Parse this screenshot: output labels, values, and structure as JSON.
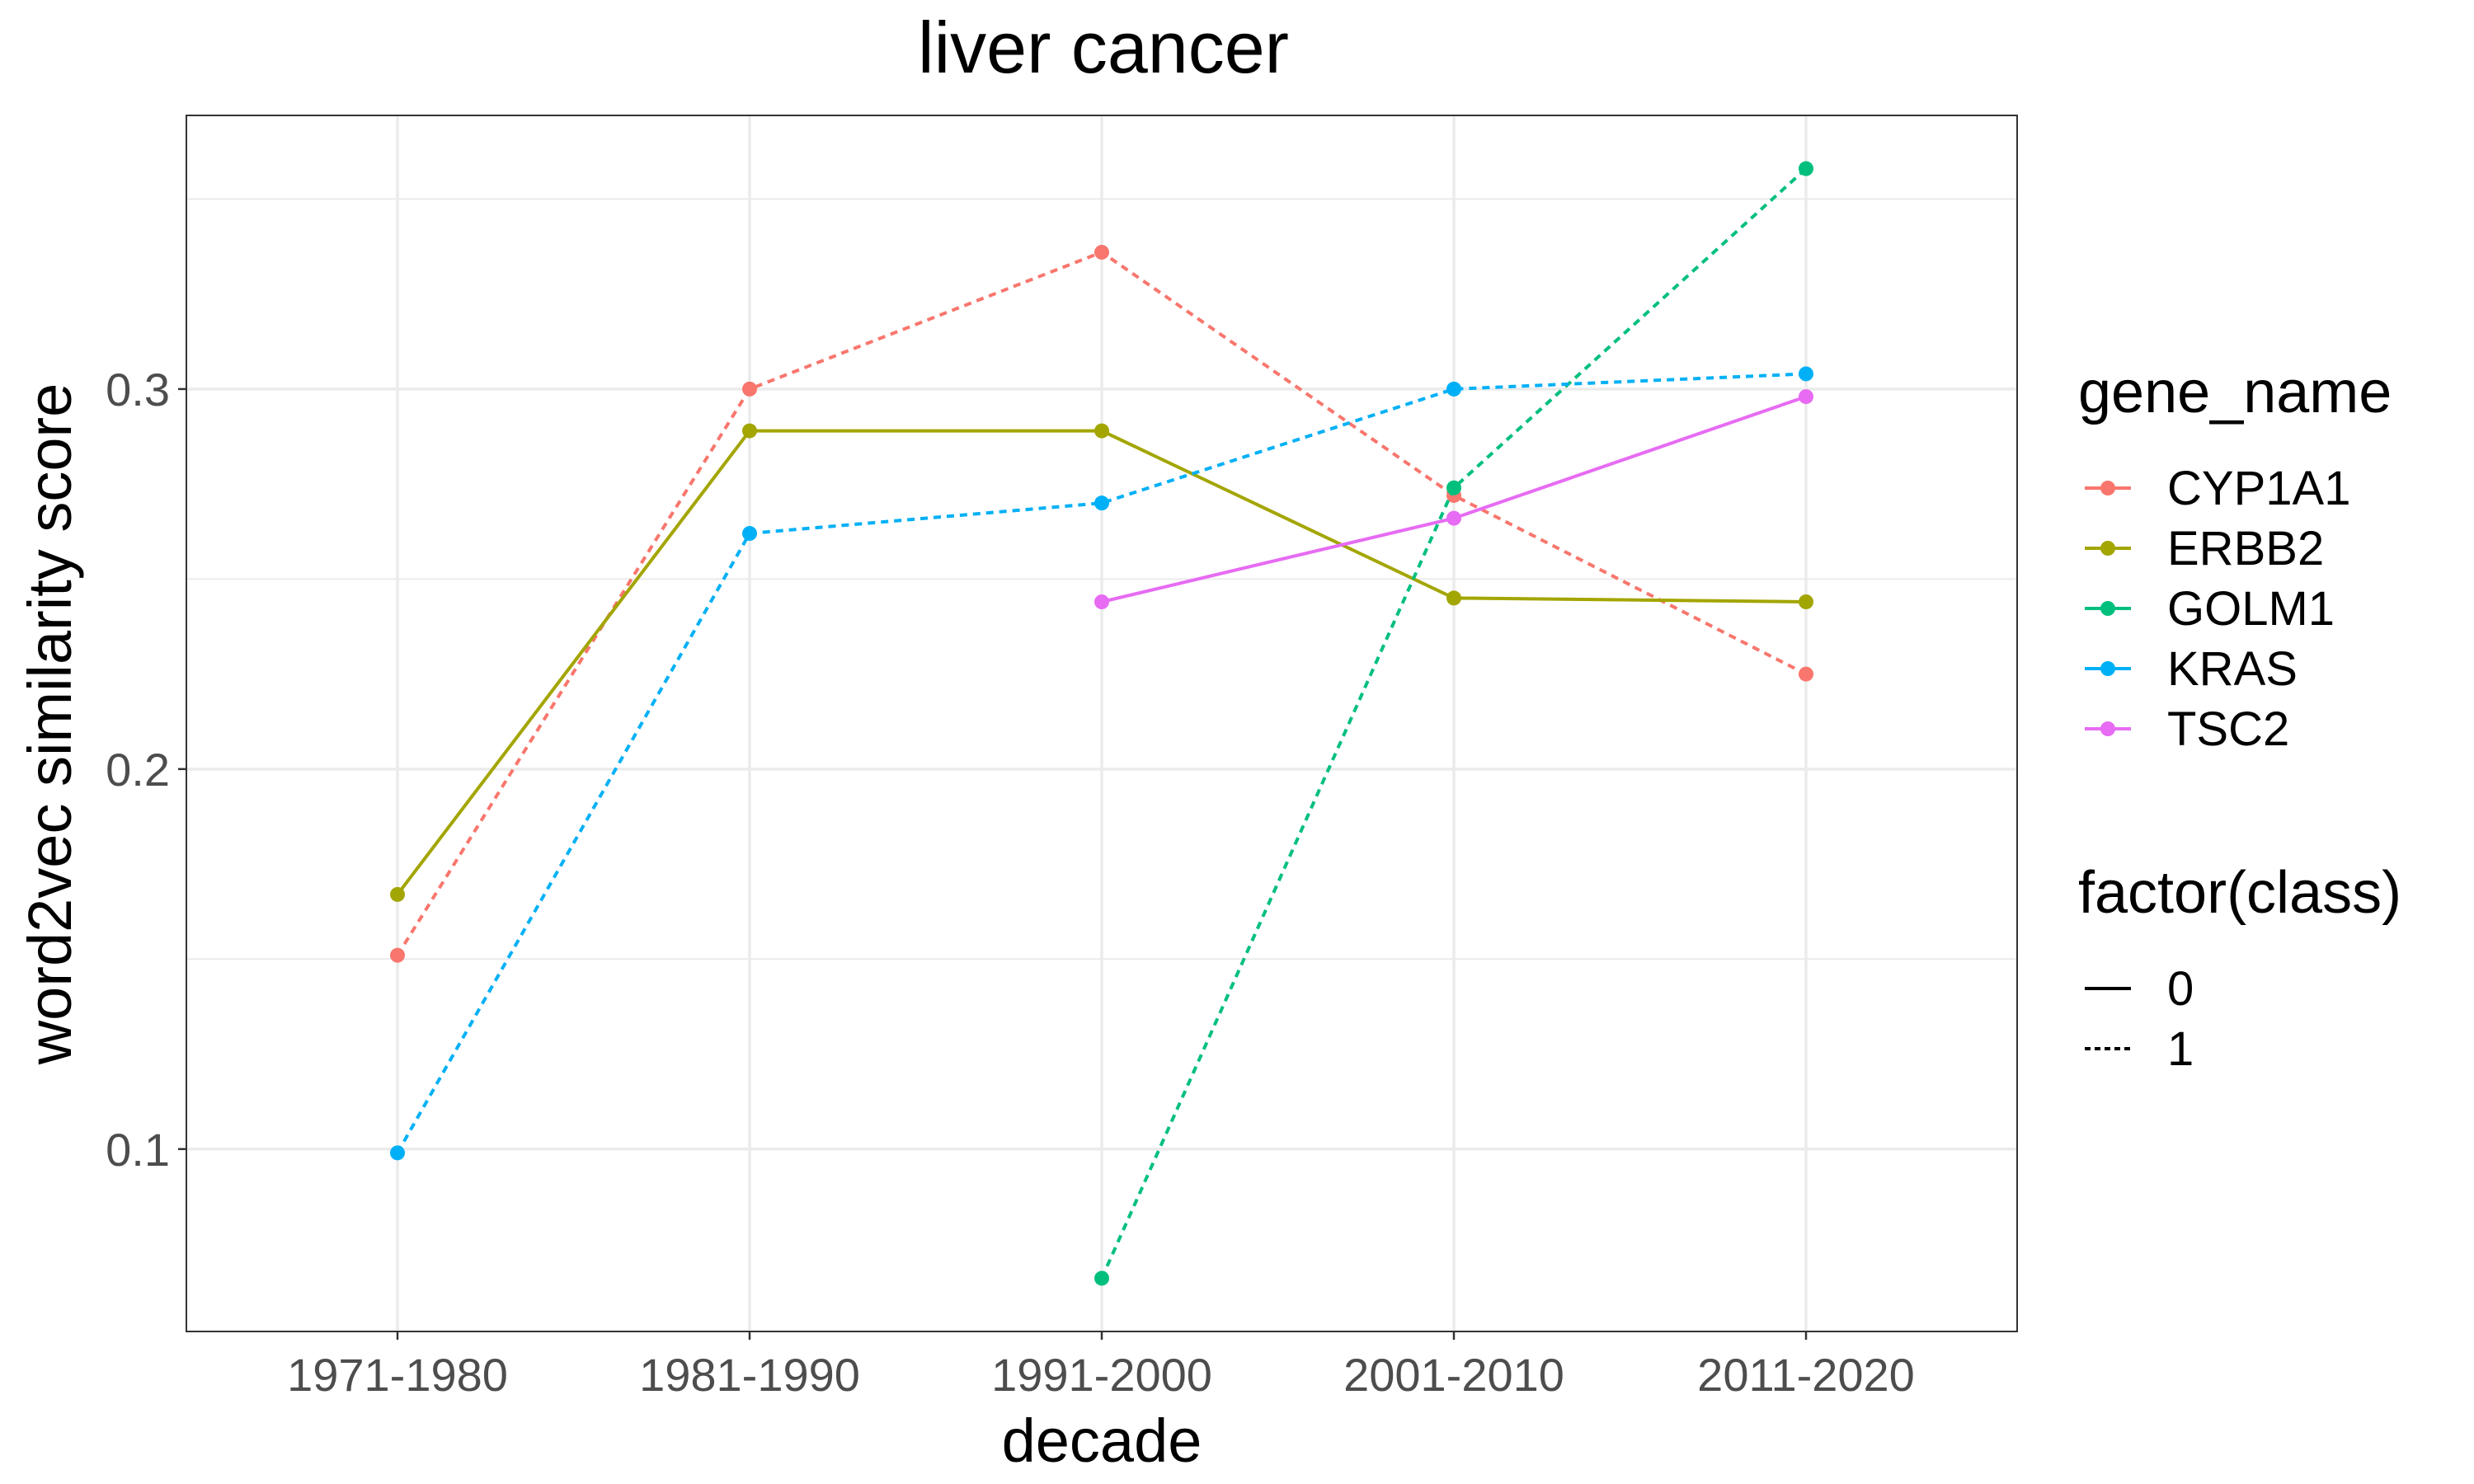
{
  "chart_data": {
    "type": "line",
    "title": "liver cancer",
    "xlabel": "decade",
    "ylabel": "word2vec similarity score",
    "categories": [
      "1971-1980",
      "1981-1990",
      "1991-2000",
      "2001-2010",
      "2011-2020"
    ],
    "ylim": [
      0.052,
      0.372
    ],
    "yticks": [
      0.1,
      0.2,
      0.3
    ],
    "ytick_labels": [
      "0.1",
      "0.2",
      "0.3"
    ],
    "grid": true,
    "legend_position": "right",
    "series": [
      {
        "name": "CYP1A1",
        "color": "#F8766D",
        "class": "1",
        "values": [
          0.151,
          0.3,
          0.336,
          0.272,
          0.225
        ]
      },
      {
        "name": "ERBB2",
        "color": "#A3A500",
        "class": "0",
        "values": [
          0.167,
          0.289,
          0.289,
          0.245,
          0.244
        ]
      },
      {
        "name": "GOLM1",
        "color": "#00BF7D",
        "class": "1",
        "values": [
          null,
          null,
          0.066,
          0.274,
          0.358
        ]
      },
      {
        "name": "KRAS",
        "color": "#00B0F6",
        "class": "1",
        "values": [
          0.099,
          0.262,
          0.27,
          0.3,
          0.304
        ]
      },
      {
        "name": "TSC2",
        "color": "#E76BF3",
        "class": "0",
        "values": [
          null,
          null,
          0.244,
          0.266,
          0.298
        ]
      }
    ],
    "legends": [
      {
        "title": "gene_name",
        "kind": "color",
        "entries": [
          "CYP1A1",
          "ERBB2",
          "GOLM1",
          "KRAS",
          "TSC2"
        ]
      },
      {
        "title": "factor(class)",
        "kind": "linetype",
        "entries": [
          "0",
          "1"
        ]
      }
    ]
  }
}
